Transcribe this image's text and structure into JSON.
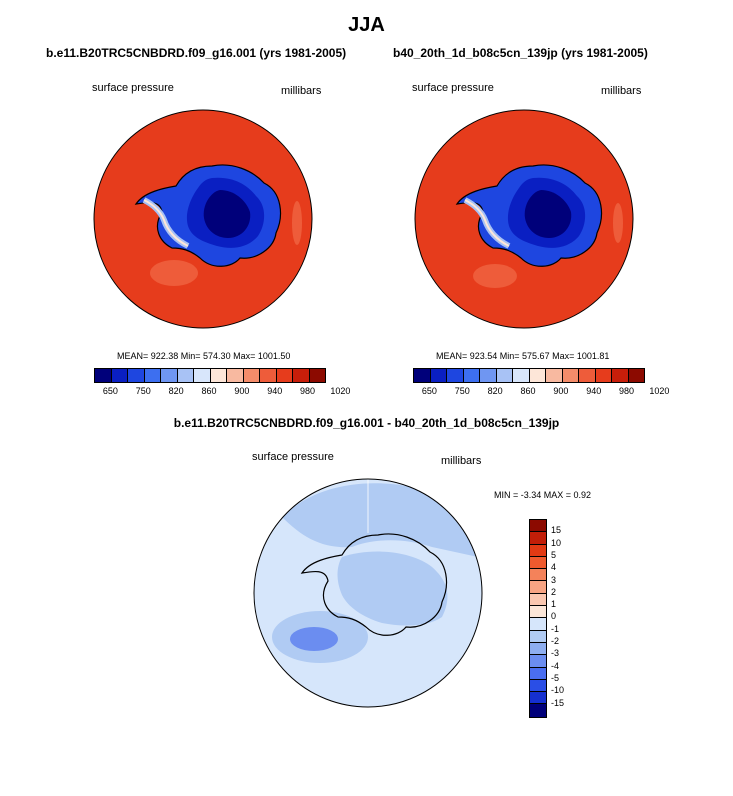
{
  "title": "JJA",
  "left_panel": {
    "title": "b.e11.B20TRC5CNBDRD.f09_g16.001 (yrs 1981-2005)",
    "variable": "surface pressure",
    "units": "millibars",
    "stats": "MEAN= 922.38   Min= 574.30   Max= 1001.50"
  },
  "right_panel": {
    "title": "b40_20th_1d_b08c5cn_139jp (yrs 1981-2005)",
    "variable": "surface pressure",
    "units": "millibars",
    "stats": "MEAN= 923.54   Min= 575.67   Max= 1001.81"
  },
  "abs_colorbar": {
    "colors": [
      "#00007a",
      "#0a1fc2",
      "#1e46e0",
      "#3d6ff0",
      "#6f96f2",
      "#a8c2f5",
      "#d8e6fb",
      "#fde6d8",
      "#f8b9a0",
      "#f48c6a",
      "#ee5c3a",
      "#e63c1c",
      "#c81e0a",
      "#8c0a00"
    ],
    "ticks": [
      "650",
      "750",
      "820",
      "860",
      "900",
      "940",
      "980",
      "1020"
    ]
  },
  "diff_panel": {
    "title": "b.e11.B20TRC5CNBDRD.f09_g16.001 - b40_20th_1d_b08c5cn_139jp",
    "variable": "surface pressure",
    "units": "millibars",
    "stats": "MIN =  -3.34 MAX =   0.92"
  },
  "diff_colorbar": {
    "colors": [
      "#8c0a00",
      "#c21e08",
      "#e23a14",
      "#ef5a2e",
      "#f4825a",
      "#f7a483",
      "#fac7b0",
      "#fbe6d8",
      "#d6e6fb",
      "#b0cbf3",
      "#8eaef0",
      "#6b8df0",
      "#4a6ef0",
      "#2a4ee6",
      "#1530d0",
      "#00007a"
    ],
    "ticks": [
      "15",
      "10",
      "5",
      "4",
      "3",
      "2",
      "1",
      "0",
      "-1",
      "-2",
      "-3",
      "-4",
      "-5",
      "-10",
      "-15"
    ]
  }
}
